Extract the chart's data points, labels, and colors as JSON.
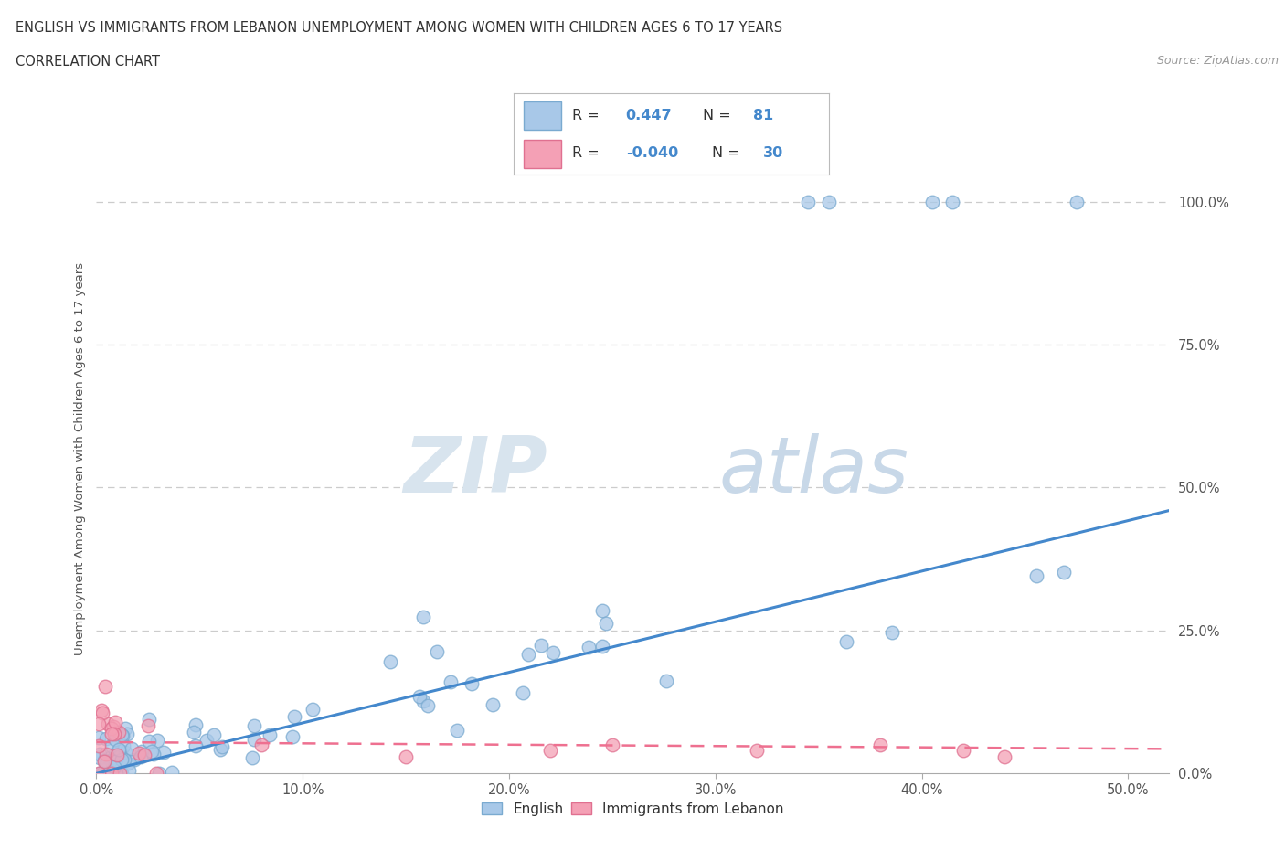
{
  "title_line1": "ENGLISH VS IMMIGRANTS FROM LEBANON UNEMPLOYMENT AMONG WOMEN WITH CHILDREN AGES 6 TO 17 YEARS",
  "title_line2": "CORRELATION CHART",
  "source": "Source: ZipAtlas.com",
  "ylabel_label": "Unemployment Among Women with Children Ages 6 to 17 years",
  "legend_english": "English",
  "legend_immigrant": "Immigrants from Lebanon",
  "R_english": "0.447",
  "N_english": "81",
  "R_immigrant": "-0.040",
  "N_immigrant": "30",
  "blue_color": "#A8C8E8",
  "pink_color": "#F4A0B5",
  "blue_edge_color": "#7AAAD0",
  "pink_edge_color": "#E07090",
  "blue_line_color": "#4488CC",
  "pink_line_color": "#EE7090",
  "stat_label_color": "#333333",
  "stat_value_color": "#4488CC",
  "watermark_color": "#E0E8F0",
  "grid_color": "#CCCCCC",
  "background_color": "#FFFFFF",
  "title_color": "#333333",
  "tick_color": "#555555",
  "ylabel_color": "#555555",
  "source_color": "#999999",
  "xlim": [
    0.0,
    0.52
  ],
  "ylim": [
    0.0,
    1.1
  ],
  "x_ticks": [
    0.0,
    0.1,
    0.2,
    0.3,
    0.4,
    0.5
  ],
  "x_tick_labels": [
    "0.0%",
    "10.0%",
    "20.0%",
    "30.0%",
    "40.0%",
    "50.0%"
  ],
  "y_ticks": [
    0.0,
    0.25,
    0.5,
    0.75,
    1.0
  ],
  "y_tick_labels": [
    "0.0%",
    "25.0%",
    "50.0%",
    "75.0%",
    "100.0%"
  ],
  "eng_line_x0": 0.0,
  "eng_line_y0": 0.0,
  "eng_line_x1": 0.52,
  "eng_line_y1": 0.46,
  "imm_line_x0": 0.0,
  "imm_line_y0": 0.055,
  "imm_line_x1": 0.52,
  "imm_line_y1": 0.043
}
